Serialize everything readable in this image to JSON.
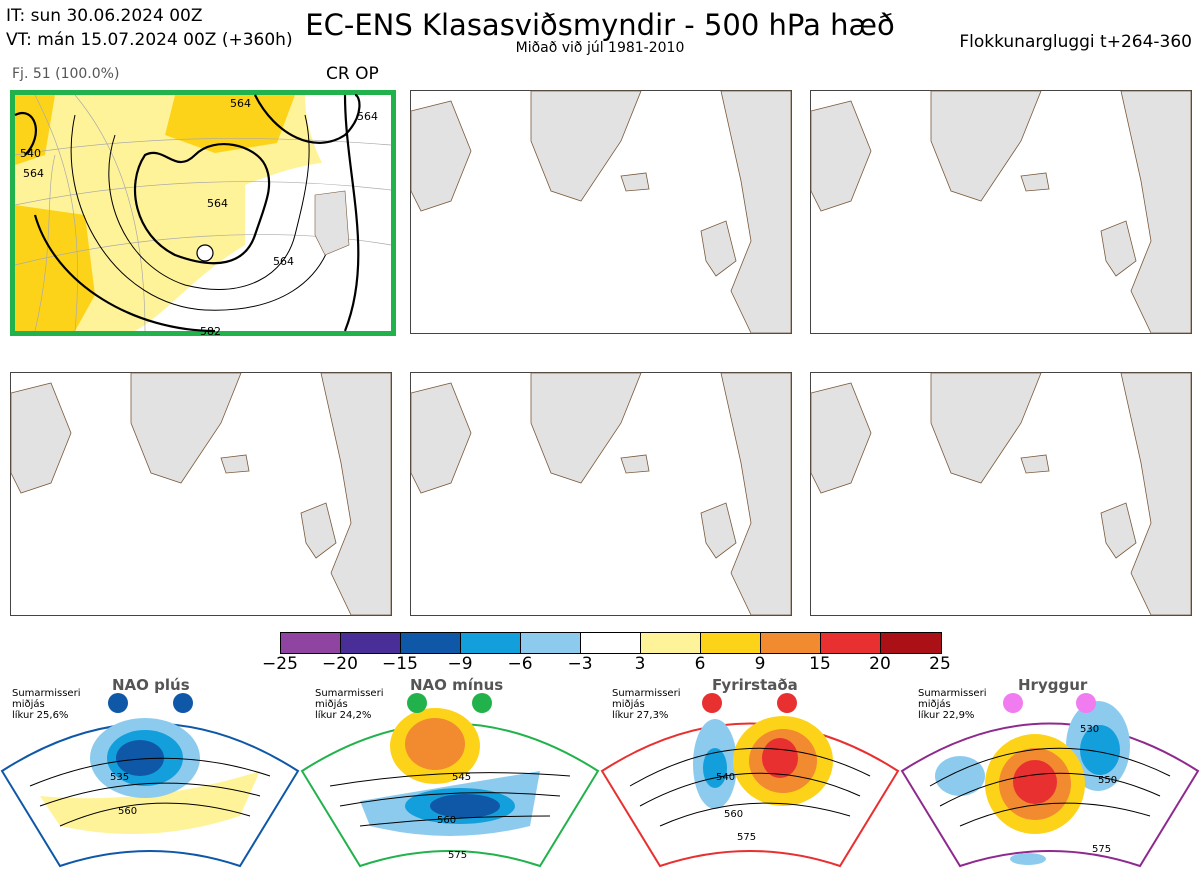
{
  "header": {
    "it_line": "IT: sun 30.06.2024 00Z",
    "vt_line": "VT: mán 15.07.2024 00Z  (+360h)",
    "title": "EC-ENS Klasasviðsmyndir - 500 hPa hæð",
    "subtitle": "Miðað við júl 1981-2010",
    "window": "Flokkunargluggi t+264-360"
  },
  "panel1": {
    "member_label": "Fj. 51 (100.0%)",
    "regime_label": "CR OP",
    "contour_labels": [
      "540",
      "564",
      "564",
      "564",
      "564",
      "564",
      "582"
    ]
  },
  "colorbar": {
    "colors": [
      "#8e44a0",
      "#4a2e98",
      "#0f58a8",
      "#139fdc",
      "#8ccbee",
      "#ffffff",
      "#fff39a",
      "#fdd31a",
      "#f28a30",
      "#e83030",
      "#ab1016"
    ],
    "labels": [
      "−25",
      "−20",
      "−15",
      "−9",
      "−6",
      "−3",
      "3",
      "6",
      "9",
      "15",
      "20",
      "25"
    ]
  },
  "regimes": [
    {
      "name": "NAO plús",
      "note": [
        "Sumarmisseri",
        "miðjás",
        "líkur 25,6%"
      ],
      "color": "#0f58a8",
      "contours": [
        "535",
        "560"
      ]
    },
    {
      "name": "NAO mínus",
      "note": [
        "Sumarmisseri",
        "miðjás",
        "líkur 24,2%"
      ],
      "color": "#22b24c",
      "contours": [
        "545",
        "560",
        "575"
      ]
    },
    {
      "name": "Fyrirstaða",
      "note": [
        "Sumarmisseri",
        "miðjás",
        "líkur 27,3%"
      ],
      "color": "#e83030",
      "contours": [
        "540",
        "560",
        "575"
      ]
    },
    {
      "name": "Hryggur",
      "note": [
        "Sumarmisseri",
        "miðjás",
        "líkur 22,9%"
      ],
      "color": "#8e2a8e",
      "contours": [
        "530",
        "550",
        "575"
      ]
    }
  ]
}
